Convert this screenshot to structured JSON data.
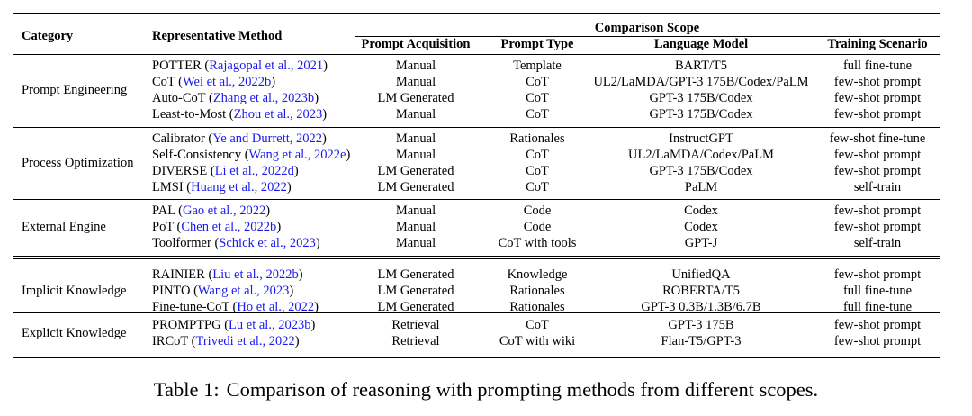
{
  "header": {
    "category": "Category",
    "method": "Representative Method",
    "scope": "Comparison Scope",
    "cols": [
      "Prompt Acquisition",
      "Prompt Type",
      "Language Model",
      "Training Scenario"
    ]
  },
  "groups": [
    {
      "category": "Prompt Engineering",
      "rows": [
        {
          "name": "POTTER",
          "cite": "Rajagopal et al., 2021",
          "cells": [
            "Manual",
            "Template",
            "BART/T5",
            "full fine-tune"
          ]
        },
        {
          "name": "CoT",
          "cite": "Wei et al., 2022b",
          "cells": [
            "Manual",
            "CoT",
            "UL2/LaMDA/GPT-3 175B/Codex/PaLM",
            "few-shot prompt"
          ]
        },
        {
          "name": "Auto-CoT",
          "cite": "Zhang et al., 2023b",
          "cells": [
            "LM Generated",
            "CoT",
            "GPT-3 175B/Codex",
            "few-shot prompt"
          ]
        },
        {
          "name": "Least-to-Most",
          "cite": "Zhou et al., 2023",
          "cells": [
            "Manual",
            "CoT",
            "GPT-3 175B/Codex",
            "few-shot prompt"
          ]
        }
      ]
    },
    {
      "category": "Process Optimization",
      "rows": [
        {
          "name": "Calibrator",
          "cite": "Ye and Durrett, 2022",
          "cells": [
            "Manual",
            "Rationales",
            "InstructGPT",
            "few-shot fine-tune"
          ]
        },
        {
          "name": "Self-Consistency",
          "cite": "Wang et al., 2022e",
          "cells": [
            "Manual",
            "CoT",
            "UL2/LaMDA/Codex/PaLM",
            "few-shot prompt"
          ]
        },
        {
          "name": "DIVERSE",
          "cite": "Li et al., 2022d",
          "cells": [
            "LM Generated",
            "CoT",
            "GPT-3 175B/Codex",
            "few-shot prompt"
          ]
        },
        {
          "name": "LMSI",
          "cite": "Huang et al., 2022",
          "cells": [
            "LM Generated",
            "CoT",
            "PaLM",
            "self-train"
          ]
        }
      ]
    },
    {
      "category": "External Engine",
      "rows": [
        {
          "name": "PAL",
          "cite": "Gao et al., 2022",
          "cells": [
            "Manual",
            "Code",
            "Codex",
            "few-shot prompt"
          ]
        },
        {
          "name": "PoT",
          "cite": "Chen et al., 2022b",
          "cells": [
            "Manual",
            "Code",
            "Codex",
            "few-shot prompt"
          ]
        },
        {
          "name": "Toolformer",
          "cite": "Schick et al., 2023",
          "cells": [
            "Manual",
            "CoT with tools",
            "GPT-J",
            "self-train"
          ]
        }
      ]
    },
    {
      "category": "Implicit Knowledge",
      "rows": [
        {
          "name": "RAINIER",
          "cite": "Liu et al., 2022b",
          "cells": [
            "LM Generated",
            "Knowledge",
            "UnifiedQA",
            "few-shot prompt"
          ]
        },
        {
          "name": "PINTO",
          "cite": "Wang et al., 2023",
          "cells": [
            "LM Generated",
            "Rationales",
            "ROBERTA/T5",
            "full fine-tune"
          ]
        },
        {
          "name": "Fine-tune-CoT",
          "cite": "Ho et al., 2022",
          "cells": [
            "LM Generated",
            "Rationales",
            "GPT-3 0.3B/1.3B/6.7B",
            "full fine-tune"
          ]
        }
      ]
    },
    {
      "category": "Explicit Knowledge",
      "rows": [
        {
          "name": "PROMPTPG",
          "cite": "Lu et al., 2023b",
          "cells": [
            "Retrieval",
            "CoT",
            "GPT-3 175B",
            "few-shot prompt"
          ]
        },
        {
          "name": "IRCoT",
          "cite": "Trivedi et al., 2022",
          "cells": [
            "Retrieval",
            "CoT with wiki",
            "Flan-T5/GPT-3",
            "few-shot prompt"
          ]
        }
      ]
    }
  ],
  "caption": {
    "number": "Table 1:",
    "text": "Comparison of reasoning with prompting methods from different scopes."
  },
  "colors": {
    "citation": "#1a1aee",
    "text": "#000000"
  }
}
